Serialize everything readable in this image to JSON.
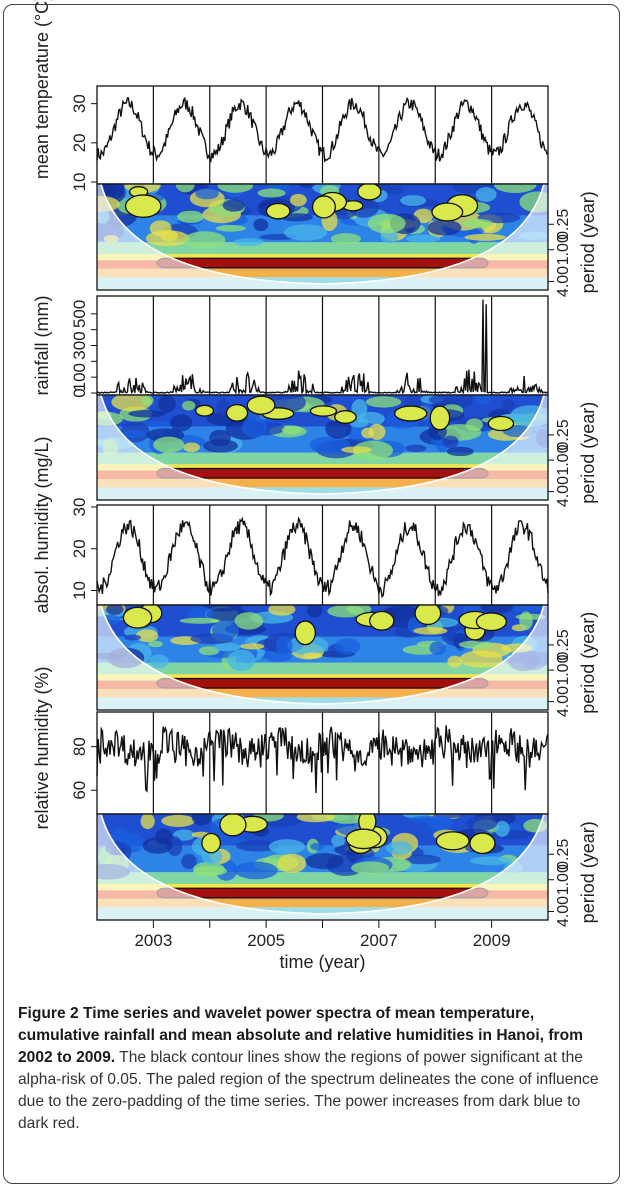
{
  "figure": {
    "caption_title": "Figure 2 Time series and wavelet power spectra of mean temperature, cumulative rainfall and mean absolute and relative humidities in Hanoi, from 2002 to 2009.",
    "caption_text": "The black contour lines show the regions of power significant at the alpha-risk of 0.05. The paled region of the spectrum delineates the cone of influence due to the zero-padding of the time series. The power increases from dark blue to dark red."
  },
  "chart_data": [
    {
      "type": "line",
      "ylabel": "mean temperature (°C)",
      "yticks": [
        10,
        20,
        30
      ],
      "ylim": [
        10,
        34
      ],
      "x_range": [
        2002,
        2010
      ],
      "seasonal": {
        "mean": 23.5,
        "amplitude": 6.5,
        "noise": 1.8,
        "peak_phase": 0.55
      },
      "year_lines": [
        2003,
        2004,
        2005,
        2006,
        2007,
        2008,
        2009
      ]
    },
    {
      "type": "heatmap",
      "ylabel": "period (year)",
      "yticks": [
        "0.25",
        "1.00",
        "4.00"
      ],
      "variable": "mean temperature",
      "annual_band": true
    },
    {
      "type": "line",
      "ylabel": "rainfall (mm)",
      "yticks": [
        0,
        100,
        200,
        300,
        400,
        500
      ],
      "yticks_shown": [
        "0",
        "100",
        "300",
        "500"
      ],
      "ylim": [
        0,
        600
      ],
      "x_range": [
        2002,
        2010
      ],
      "seasonal": {
        "mean": 0,
        "amplitude": 0,
        "noise": 0,
        "peak_phase": 0.6
      },
      "spikes": [
        {
          "x": 2008.85,
          "y": 590
        },
        {
          "x": 2008.9,
          "y": 560
        }
      ],
      "year_lines": [
        2003,
        2004,
        2005,
        2006,
        2007,
        2008,
        2009
      ]
    },
    {
      "type": "heatmap",
      "ylabel": "period (year)",
      "yticks": [
        "0.25",
        "1.00",
        "4.00"
      ],
      "variable": "rainfall",
      "annual_band": true
    },
    {
      "type": "line",
      "ylabel": "absol. humidity (mg/L)",
      "yticks": [
        10,
        20,
        30
      ],
      "ylim": [
        7,
        30
      ],
      "x_range": [
        2002,
        2010
      ],
      "seasonal": {
        "mean": 18,
        "amplitude": 7.5,
        "noise": 2.0,
        "peak_phase": 0.55
      },
      "year_lines": [
        2003,
        2004,
        2005,
        2006,
        2007,
        2008,
        2009
      ]
    },
    {
      "type": "heatmap",
      "ylabel": "period (year)",
      "yticks": [
        "0.25",
        "1.00",
        "4.00"
      ],
      "variable": "absolute humidity",
      "annual_band": true
    },
    {
      "type": "line",
      "ylabel": "relative humidity (%)",
      "yticks": [
        60,
        80
      ],
      "ylim": [
        50,
        95
      ],
      "x_range": [
        2002,
        2010
      ],
      "seasonal": {
        "mean": 80,
        "amplitude": 3,
        "noise": 7,
        "peak_phase": 0.2
      },
      "year_lines": [
        2003,
        2004,
        2005,
        2006,
        2007,
        2008,
        2009
      ]
    },
    {
      "type": "heatmap",
      "ylabel": "period (year)",
      "yticks": [
        "0.25",
        "1.00",
        "4.00"
      ],
      "variable": "relative humidity",
      "annual_band": true
    }
  ],
  "xaxis": {
    "label": "time (year)",
    "ticks": [
      "2003",
      "2005",
      "2007",
      "2009"
    ]
  }
}
